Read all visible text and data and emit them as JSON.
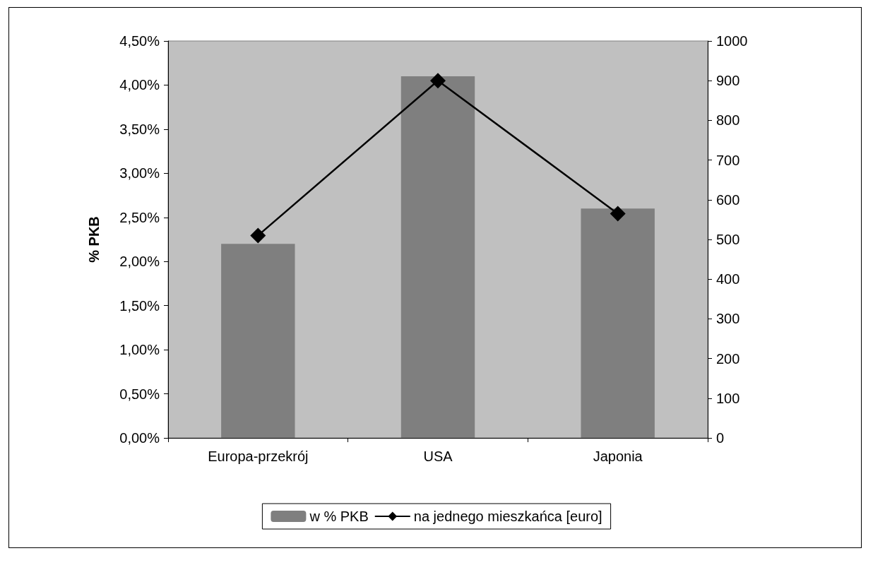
{
  "chart_data": {
    "type": "bar",
    "ylabel": "% PKB",
    "categories": [
      "Europa-przekrój",
      "USA",
      "Japonia"
    ],
    "series": [
      {
        "name": "w % PKB",
        "color": "#7f7f7f",
        "values": [
          2.2,
          4.1,
          2.6
        ]
      },
      {
        "name": "na jednego mieszkańca [euro]",
        "type": "line",
        "axis": "y2",
        "color": "#000000",
        "marker": "diamond",
        "values": [
          510,
          900,
          565
        ]
      }
    ],
    "ylim": [
      0,
      4.5
    ],
    "yticks": [
      {
        "value": 0,
        "label": "0,00%"
      },
      {
        "value": 0.5,
        "label": "0,50%"
      },
      {
        "value": 1,
        "label": "1,00%"
      },
      {
        "value": 1.5,
        "label": "1,50%"
      },
      {
        "value": 2,
        "label": "2,00%"
      },
      {
        "value": 2.5,
        "label": "2,50%"
      },
      {
        "value": 3,
        "label": "3,00%"
      },
      {
        "value": 3.5,
        "label": "3,50%"
      },
      {
        "value": 4,
        "label": "4,00%"
      },
      {
        "value": 4.5,
        "label": "4,50%"
      }
    ],
    "y2lim": [
      0,
      1000
    ],
    "y2ticks": [
      0,
      100,
      200,
      300,
      400,
      500,
      600,
      700,
      800,
      900,
      1000
    ],
    "grid": false,
    "legend": "bottom"
  }
}
